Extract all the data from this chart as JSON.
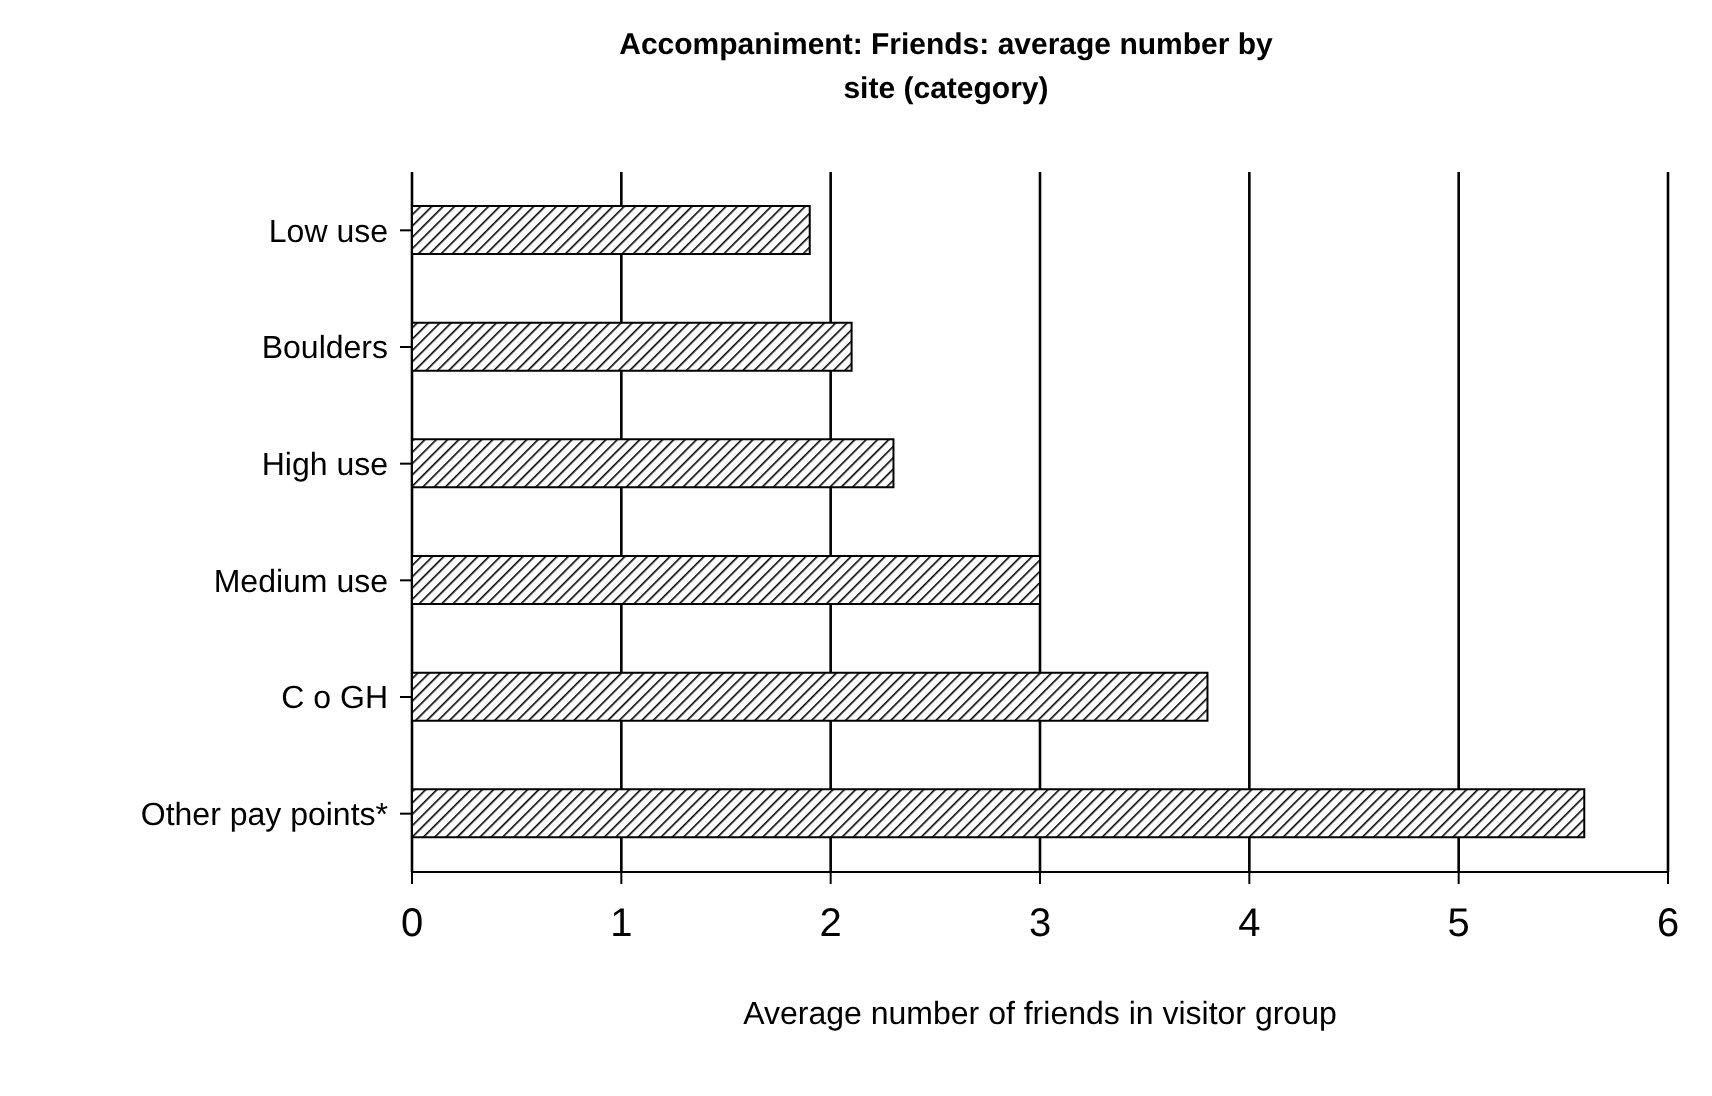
{
  "chart_data": {
    "type": "bar",
    "orientation": "horizontal",
    "title": "Accompaniment: Friends: average number by site (category)",
    "categories": [
      "Low use",
      "Boulders",
      "High use",
      "Medium use",
      "C o GH",
      "Other pay points*"
    ],
    "values": [
      1.9,
      2.1,
      2.3,
      3.0,
      3.8,
      5.6
    ],
    "color": "#000000",
    "xlim": [
      0,
      6
    ],
    "xticks": [
      0,
      1,
      2,
      3,
      4,
      5,
      6
    ],
    "grid": "x",
    "xlabel": "Average number of friends in visitor group"
  }
}
